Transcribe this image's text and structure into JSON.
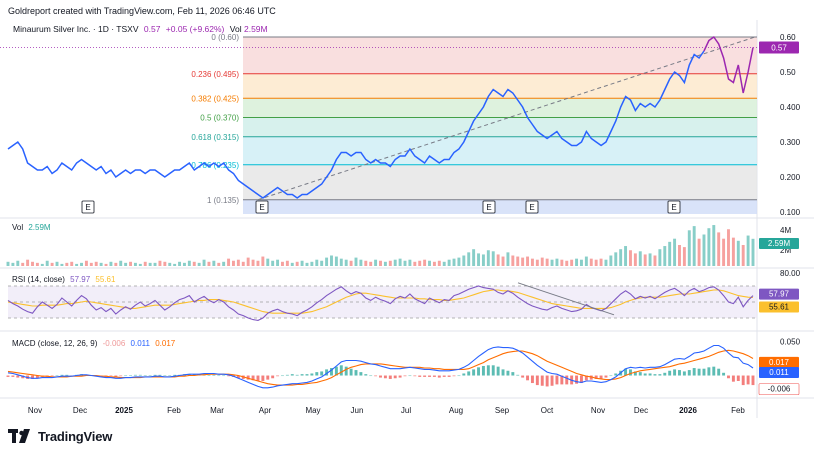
{
  "header": {
    "credit": "Goldreport created with TradingView.com, Feb 11, 2026 06:46 UTC"
  },
  "legend": {
    "symbol": "Minaurum Silver Inc. · 1D · TSXV",
    "last": "0.57",
    "change": "+0.05 (+9.62%)",
    "vol_label": "Vol",
    "vol_value": "2.59M"
  },
  "colors": {
    "price": "#2962ff",
    "price_up": "#9c27b0",
    "vol_up": "#26a69a",
    "vol_down": "#ef5350",
    "rsi": "#7e57c2",
    "rsi_ma": "#fbc02d",
    "macd": "#2962ff",
    "signal": "#ff6d00"
  },
  "chart_data": [
    {
      "type": "line",
      "panel": "price",
      "x_ticks": [
        "Nov",
        "Dec",
        "2025",
        "Feb",
        "Mar",
        "Apr",
        "May",
        "Jun",
        "Jul",
        "Aug",
        "Sep",
        "Oct",
        "Nov",
        "Dec",
        "2026",
        "Feb"
      ],
      "y_ticks": [
        "0.60",
        "0.50",
        "0.400",
        "0.300",
        "0.200",
        "0.100"
      ],
      "ylim": [
        0.1,
        0.6
      ],
      "last_price_label": "0.57",
      "fib_levels": [
        {
          "label": "0 (0.60)",
          "value": 0.6
        },
        {
          "label": "0.236 (0.495)",
          "value": 0.495
        },
        {
          "label": "0.382 (0.425)",
          "value": 0.425
        },
        {
          "label": "0.5 (0.370)",
          "value": 0.37
        },
        {
          "label": "0.618 (0.315)",
          "value": 0.315
        },
        {
          "label": "0.786 (0.235)",
          "value": 0.235
        },
        {
          "label": "1 (0.135)",
          "value": 0.135
        }
      ],
      "earnings_marker": "E",
      "earnings_months": [
        "Dec",
        "Apr",
        "Sep",
        "Oct",
        "Dec"
      ],
      "series": [
        {
          "values": [
            0.28,
            0.29,
            0.3,
            0.28,
            0.24,
            0.23,
            0.22,
            0.22,
            0.23,
            0.21,
            0.22,
            0.24,
            0.23,
            0.22,
            0.24,
            0.25,
            0.24,
            0.23,
            0.22,
            0.23,
            0.21,
            0.22,
            0.2,
            0.21,
            0.22,
            0.21,
            0.22,
            0.22,
            0.21,
            0.22,
            0.22,
            0.21,
            0.2,
            0.21,
            0.22,
            0.22,
            0.23,
            0.24,
            0.22,
            0.23,
            0.24,
            0.23,
            0.24,
            0.23,
            0.24,
            0.22,
            0.21,
            0.19,
            0.18,
            0.17,
            0.16,
            0.15,
            0.14,
            0.15,
            0.16,
            0.17,
            0.16,
            0.15,
            0.15,
            0.14,
            0.15,
            0.15,
            0.16,
            0.17,
            0.18,
            0.2,
            0.22,
            0.25,
            0.27,
            0.27,
            0.26,
            0.27,
            0.27,
            0.25,
            0.24,
            0.25,
            0.24,
            0.24,
            0.23,
            0.25,
            0.26,
            0.26,
            0.28,
            0.26,
            0.25,
            0.24,
            0.26,
            0.25,
            0.24,
            0.25,
            0.25,
            0.27,
            0.28,
            0.3,
            0.33,
            0.36,
            0.38,
            0.4,
            0.43,
            0.45,
            0.44,
            0.43,
            0.45,
            0.44,
            0.42,
            0.4,
            0.37,
            0.35,
            0.33,
            0.32,
            0.31,
            0.32,
            0.33,
            0.31,
            0.3,
            0.29,
            0.29,
            0.3,
            0.33,
            0.31,
            0.3,
            0.29,
            0.3,
            0.33,
            0.36,
            0.4,
            0.43,
            0.42,
            0.39,
            0.41,
            0.4,
            0.41,
            0.4,
            0.42,
            0.45,
            0.48,
            0.5,
            0.49,
            0.47,
            0.52,
            0.55,
            0.54,
            0.56,
            0.59,
            0.6,
            0.58,
            0.54,
            0.48,
            0.47,
            0.52,
            0.44,
            0.5,
            0.57
          ]
        }
      ]
    },
    {
      "type": "bar",
      "panel": "volume",
      "title": "Vol",
      "y_ticks": [
        "4M",
        "2M",
        "0"
      ],
      "ylim": [
        0,
        4000000
      ],
      "last_label": "2.59M",
      "series": [
        {
          "values": [
            0.4,
            0.3,
            0.5,
            0.3,
            0.6,
            0.4,
            0.3,
            0.2,
            0.5,
            0.3,
            0.4,
            0.2,
            0.3,
            0.4,
            0.2,
            0.3,
            0.5,
            0.3,
            0.4,
            0.3,
            0.2,
            0.4,
            0.3,
            0.5,
            0.3,
            0.4,
            0.3,
            0.2,
            0.4,
            0.3,
            0.3,
            0.5,
            0.4,
            0.3,
            0.2,
            0.4,
            0.3,
            0.5,
            0.4,
            0.3,
            0.6,
            0.4,
            0.5,
            0.3,
            0.4,
            0.7,
            0.5,
            0.6,
            0.4,
            0.8,
            0.6,
            0.5,
            0.9,
            0.7,
            0.5,
            0.6,
            0.4,
            0.5,
            0.3,
            0.4,
            0.5,
            0.3,
            0.4,
            0.6,
            0.5,
            0.8,
            1.0,
            0.9,
            0.7,
            0.6,
            0.5,
            0.8,
            0.6,
            0.5,
            0.4,
            0.6,
            0.5,
            0.4,
            0.5,
            0.6,
            0.7,
            0.5,
            0.6,
            0.4,
            0.5,
            0.6,
            0.5,
            0.4,
            0.5,
            0.4,
            0.6,
            0.7,
            0.8,
            1.0,
            1.3,
            1.6,
            1.2,
            1.1,
            1.5,
            1.4,
            1.1,
            0.9,
            1.3,
            1.0,
            0.9,
            0.8,
            0.9,
            0.7,
            0.6,
            0.8,
            0.7,
            0.6,
            0.7,
            0.6,
            0.5,
            0.6,
            0.7,
            0.6,
            0.9,
            0.7,
            0.6,
            0.7,
            0.6,
            1.0,
            1.3,
            1.6,
            1.9,
            1.5,
            1.2,
            1.4,
            1.1,
            1.2,
            1.0,
            1.6,
            1.9,
            2.3,
            2.6,
            2.0,
            1.8,
            3.4,
            3.8,
            2.6,
            3.0,
            3.6,
            3.9,
            3.2,
            2.6,
            3.5,
            2.7,
            2.4,
            2.0,
            2.9,
            2.59
          ]
        }
      ]
    },
    {
      "type": "line",
      "panel": "rsi",
      "title": "RSI (14, close)",
      "values_label": [
        "57.97",
        "55.61"
      ],
      "y_ticks": [
        "80.00",
        "20.00"
      ],
      "ylim": [
        20,
        80
      ],
      "bands": [
        70,
        30
      ],
      "series": [
        {
          "name": "RSI",
          "values": [
            52,
            48,
            45,
            41,
            38,
            36,
            44,
            50,
            46,
            42,
            47,
            55,
            50,
            45,
            52,
            58,
            54,
            46,
            40,
            43,
            38,
            42,
            35,
            40,
            44,
            41,
            46,
            50,
            45,
            48,
            52,
            46,
            40,
            44,
            49,
            53,
            55,
            58,
            50,
            54,
            57,
            52,
            49,
            53,
            50,
            44,
            40,
            35,
            33,
            30,
            28,
            27,
            30,
            36,
            39,
            41,
            38,
            36,
            35,
            33,
            37,
            40,
            44,
            49,
            53,
            58,
            62,
            66,
            69,
            64,
            60,
            63,
            61,
            55,
            52,
            56,
            53,
            51,
            48,
            54,
            57,
            55,
            60,
            54,
            51,
            48,
            55,
            52,
            49,
            53,
            52,
            58,
            60,
            63,
            66,
            68,
            70,
            68,
            67,
            66,
            62,
            60,
            64,
            61,
            56,
            52,
            48,
            45,
            43,
            41,
            40,
            43,
            45,
            42,
            40,
            38,
            39,
            41,
            47,
            43,
            41,
            39,
            42,
            48,
            54,
            60,
            64,
            60,
            54,
            57,
            55,
            57,
            54,
            58,
            62,
            65,
            67,
            63,
            58,
            64,
            67,
            63,
            65,
            68,
            69,
            65,
            58,
            50,
            48,
            56,
            44,
            52,
            57.97
          ]
        },
        {
          "name": "RSI-based MA",
          "values": [
            50,
            49,
            48,
            47,
            46,
            45,
            45,
            46,
            46,
            46,
            46,
            47,
            48,
            48,
            49,
            50,
            51,
            50,
            49,
            48,
            47,
            46,
            45,
            44,
            43,
            42,
            42,
            43,
            44,
            45,
            46,
            46,
            46,
            46,
            47,
            48,
            49,
            50,
            51,
            52,
            52,
            53,
            53,
            53,
            52,
            51,
            50,
            48,
            46,
            44,
            42,
            40,
            38,
            37,
            36,
            36,
            36,
            36,
            36,
            36,
            36,
            37,
            38,
            40,
            42,
            44,
            47,
            50,
            53,
            56,
            58,
            60,
            61,
            61,
            60,
            59,
            58,
            57,
            56,
            55,
            55,
            55,
            55,
            55,
            54,
            54,
            53,
            53,
            53,
            52,
            52,
            53,
            54,
            55,
            57,
            59,
            61,
            63,
            64,
            65,
            65,
            64,
            64,
            63,
            62,
            60,
            58,
            56,
            54,
            52,
            50,
            48,
            47,
            46,
            45,
            44,
            43,
            42,
            42,
            42,
            42,
            42,
            42,
            43,
            45,
            47,
            50,
            52,
            54,
            55,
            56,
            56,
            56,
            56,
            57,
            58,
            59,
            60,
            60,
            60,
            61,
            62,
            63,
            64,
            65,
            65,
            64,
            62,
            60,
            58,
            57,
            56,
            55.61
          ]
        }
      ]
    },
    {
      "type": "line",
      "panel": "macd",
      "title": "MACD (close, 12, 26, 9)",
      "values_label": [
        "-0.006",
        "0.011",
        "0.017"
      ],
      "y_ticks": [
        "0.050",
        "0.025",
        "0.000",
        "-0.025"
      ],
      "ylim": [
        -0.03,
        0.055
      ],
      "series": [
        {
          "name": "MACD",
          "values": [
            0.004,
            0.003,
            0.001,
            -0.001,
            -0.003,
            -0.004,
            -0.004,
            -0.003,
            -0.003,
            -0.003,
            -0.002,
            -0.001,
            -0.001,
            -0.001,
            0.0,
            0.001,
            0.001,
            0.0,
            -0.001,
            -0.002,
            -0.003,
            -0.003,
            -0.004,
            -0.004,
            -0.003,
            -0.003,
            -0.002,
            -0.002,
            -0.002,
            -0.002,
            -0.001,
            -0.001,
            -0.002,
            -0.002,
            -0.001,
            0.0,
            0.001,
            0.002,
            0.002,
            0.002,
            0.003,
            0.003,
            0.003,
            0.002,
            0.002,
            0.001,
            -0.001,
            -0.004,
            -0.007,
            -0.01,
            -0.013,
            -0.016,
            -0.018,
            -0.018,
            -0.017,
            -0.015,
            -0.014,
            -0.013,
            -0.012,
            -0.012,
            -0.011,
            -0.01,
            -0.008,
            -0.005,
            -0.002,
            0.003,
            0.008,
            0.014,
            0.02,
            0.022,
            0.022,
            0.022,
            0.021,
            0.019,
            0.017,
            0.016,
            0.014,
            0.012,
            0.01,
            0.01,
            0.01,
            0.011,
            0.012,
            0.011,
            0.01,
            0.009,
            0.009,
            0.008,
            0.007,
            0.007,
            0.007,
            0.008,
            0.009,
            0.012,
            0.016,
            0.022,
            0.028,
            0.033,
            0.038,
            0.041,
            0.042,
            0.041,
            0.041,
            0.04,
            0.037,
            0.033,
            0.027,
            0.021,
            0.015,
            0.01,
            0.005,
            0.003,
            0.002,
            -0.001,
            -0.004,
            -0.007,
            -0.009,
            -0.01,
            -0.008,
            -0.008,
            -0.009,
            -0.01,
            -0.009,
            -0.006,
            -0.002,
            0.004,
            0.01,
            0.012,
            0.011,
            0.012,
            0.011,
            0.012,
            0.012,
            0.013,
            0.016,
            0.02,
            0.024,
            0.025,
            0.024,
            0.028,
            0.033,
            0.034,
            0.036,
            0.04,
            0.044,
            0.044,
            0.04,
            0.033,
            0.027,
            0.026,
            0.018,
            0.016,
            0.011
          ]
        },
        {
          "name": "Signal",
          "values": [
            0.006,
            0.005,
            0.004,
            0.003,
            0.002,
            0.001,
            0.0,
            -0.001,
            -0.001,
            -0.002,
            -0.002,
            -0.002,
            -0.002,
            -0.001,
            -0.001,
            -0.001,
            0.0,
            0.0,
            0.0,
            -0.001,
            -0.001,
            -0.002,
            -0.002,
            -0.003,
            -0.003,
            -0.003,
            -0.003,
            -0.003,
            -0.002,
            -0.002,
            -0.002,
            -0.002,
            -0.002,
            -0.002,
            -0.002,
            -0.001,
            -0.001,
            0.0,
            0.0,
            0.001,
            0.001,
            0.002,
            0.002,
            0.002,
            0.002,
            0.002,
            0.001,
            0.0,
            -0.002,
            -0.004,
            -0.006,
            -0.008,
            -0.01,
            -0.012,
            -0.013,
            -0.014,
            -0.014,
            -0.014,
            -0.014,
            -0.013,
            -0.013,
            -0.012,
            -0.011,
            -0.01,
            -0.008,
            -0.006,
            -0.003,
            0.001,
            0.005,
            0.009,
            0.012,
            0.014,
            0.016,
            0.017,
            0.017,
            0.017,
            0.017,
            0.016,
            0.015,
            0.014,
            0.013,
            0.012,
            0.012,
            0.012,
            0.012,
            0.011,
            0.011,
            0.01,
            0.01,
            0.009,
            0.009,
            0.009,
            0.009,
            0.009,
            0.01,
            0.013,
            0.016,
            0.019,
            0.023,
            0.026,
            0.029,
            0.032,
            0.034,
            0.035,
            0.036,
            0.036,
            0.034,
            0.032,
            0.029,
            0.025,
            0.021,
            0.018,
            0.015,
            0.012,
            0.009,
            0.006,
            0.003,
            0.001,
            -0.001,
            -0.002,
            -0.004,
            -0.005,
            -0.006,
            -0.006,
            -0.005,
            -0.003,
            0.0,
            0.003,
            0.005,
            0.007,
            0.008,
            0.009,
            0.01,
            0.011,
            0.012,
            0.013,
            0.015,
            0.017,
            0.018,
            0.02,
            0.022,
            0.024,
            0.026,
            0.028,
            0.031,
            0.034,
            0.036,
            0.037,
            0.036,
            0.034,
            0.032,
            0.029,
            0.025,
            0.017
          ]
        }
      ]
    }
  ]
}
